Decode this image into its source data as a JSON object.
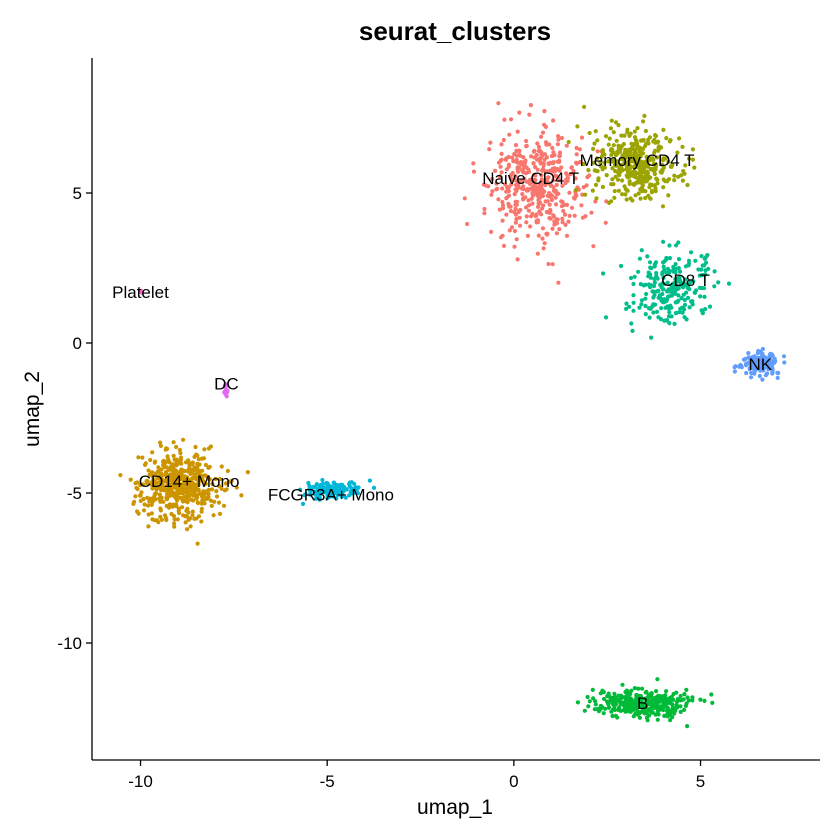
{
  "chart_data": {
    "type": "scatter",
    "title": "seurat_clusters",
    "xlabel": "umap_1",
    "ylabel": "umap_2",
    "xlim": [
      -11.3,
      8.2
    ],
    "ylim": [
      -13.9,
      9.5
    ],
    "x_ticks": [
      -10,
      -5,
      0,
      5
    ],
    "y_ticks": [
      5,
      0,
      -5,
      -10
    ],
    "x_tick_labels": [
      "-10",
      "-5",
      "0",
      "5"
    ],
    "y_tick_labels": [
      "5",
      "0",
      "-5",
      "-10"
    ],
    "grid": false,
    "legend": "none",
    "series": [
      {
        "name": "Naive CD4 T",
        "color": "#F8766D",
        "center": [
          0.6,
          5.2
        ],
        "spread": [
          1.15,
          1.6
        ],
        "n": 420,
        "label_pos": [
          0.45,
          5.5
        ]
      },
      {
        "name": "Memory CD4 T",
        "color": "#9BA400",
        "center": [
          3.3,
          6.0
        ],
        "spread": [
          1.1,
          1.05
        ],
        "n": 380,
        "label_pos": [
          3.3,
          6.1
        ]
      },
      {
        "name": "CD8 T",
        "color": "#00BE8B",
        "center": [
          4.2,
          1.8
        ],
        "spread": [
          0.95,
          1.1
        ],
        "n": 240,
        "label_pos": [
          4.6,
          2.1
        ]
      },
      {
        "name": "NK",
        "color": "#619CFF",
        "center": [
          6.6,
          -0.7
        ],
        "spread": [
          0.45,
          0.35
        ],
        "n": 130,
        "label_pos": [
          6.6,
          -0.7
        ]
      },
      {
        "name": "B",
        "color": "#00BA38",
        "center": [
          3.4,
          -12.0
        ],
        "spread": [
          1.15,
          0.42
        ],
        "n": 340,
        "label_pos": [
          3.45,
          -12.0
        ]
      },
      {
        "name": "CD14+ Mono",
        "color": "#CC9500",
        "center": [
          -9.0,
          -4.7
        ],
        "spread": [
          1.0,
          1.05
        ],
        "n": 480,
        "label_pos": [
          -8.7,
          -4.6
        ]
      },
      {
        "name": "FCGR3A+ Mono",
        "color": "#00B6D9",
        "center": [
          -4.9,
          -4.9
        ],
        "spread": [
          0.6,
          0.28
        ],
        "n": 150,
        "label_pos": [
          -4.9,
          -5.05
        ]
      },
      {
        "name": "DC",
        "color": "#E06AF0",
        "center": [
          -7.7,
          -1.5
        ],
        "spread": [
          0.05,
          0.25
        ],
        "n": 18,
        "label_pos": [
          -7.7,
          -1.35
        ]
      },
      {
        "name": "Platelet",
        "color": "#FF61C3",
        "center": [
          -10.0,
          1.7
        ],
        "spread": [
          0.05,
          0.05
        ],
        "n": 4,
        "label_pos": [
          -10.0,
          1.7
        ]
      }
    ]
  }
}
